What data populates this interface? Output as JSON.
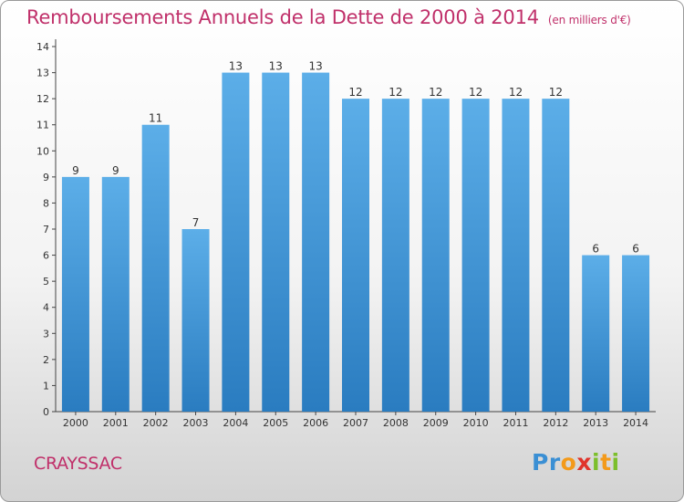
{
  "title": "Remboursements Annuels de la Dette de 2000 à 2014",
  "unit": "(en milliers d'€)",
  "commune": "CRAYSSAC",
  "logo_text": "Proxiti",
  "colors": {
    "title": "#c0306a",
    "bar_top": "#5caee8",
    "bar_bottom": "#2a7cc0",
    "axis": "#444444"
  },
  "chart_data": {
    "type": "bar",
    "title": "Remboursements Annuels de la Dette de 2000 à 2014",
    "ylabel": "",
    "xlabel": "",
    "categories": [
      "2000",
      "2001",
      "2002",
      "2003",
      "2004",
      "2005",
      "2006",
      "2007",
      "2008",
      "2009",
      "2010",
      "2011",
      "2012",
      "2013",
      "2014"
    ],
    "values": [
      9,
      9,
      11,
      7,
      13,
      13,
      13,
      12,
      12,
      12,
      12,
      12,
      12,
      6,
      6
    ],
    "ylim": [
      0,
      14
    ],
    "yticks": [
      0,
      1,
      2,
      3,
      4,
      5,
      6,
      7,
      8,
      9,
      10,
      11,
      12,
      13,
      14
    ],
    "grid": false,
    "legend": "none"
  }
}
